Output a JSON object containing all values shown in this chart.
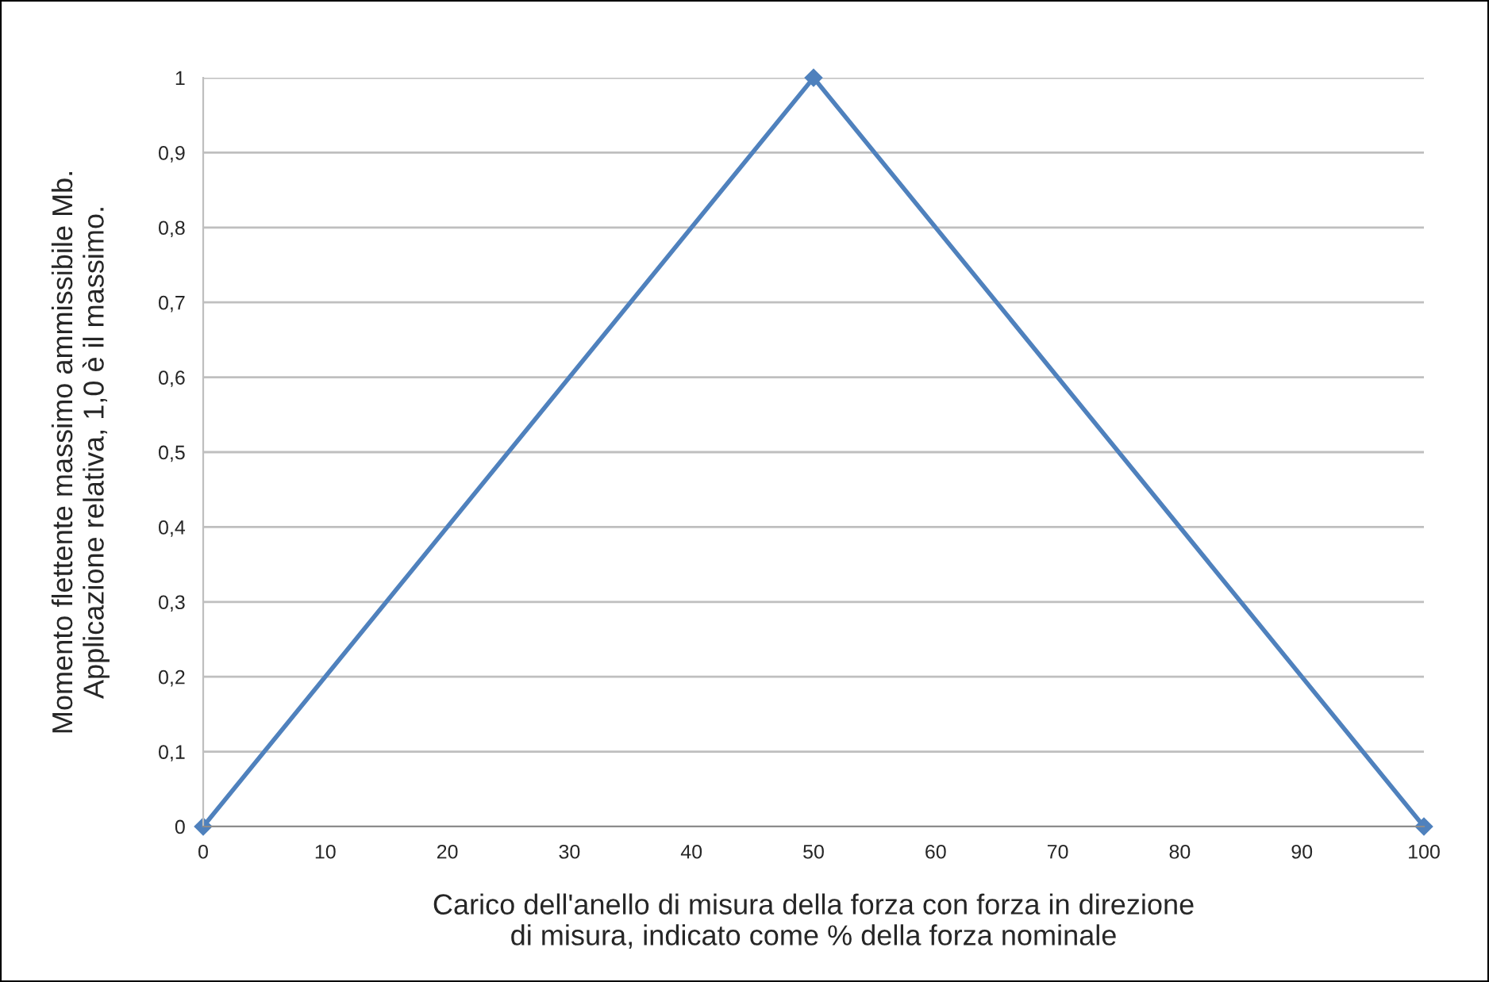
{
  "chart_data": {
    "type": "line",
    "xlabel": "Carico dell'anello di misura della forza con forza in direzione\ndi misura, indicato come % della forza nominale",
    "ylabel": "Momento flettente massimo ammissibile Mb.\nApplicazione relativa, 1,0 è il massimo.",
    "x": [
      0,
      50,
      100
    ],
    "series": [
      {
        "color": "#4f81bd",
        "values": [
          0,
          1,
          0
        ]
      }
    ],
    "xlim": [
      0,
      100
    ],
    "xticks": [
      0,
      10,
      20,
      30,
      40,
      50,
      60,
      70,
      80,
      90,
      100
    ],
    "ylim": [
      0,
      1
    ],
    "yticks": [
      0,
      {
        "value": 0.1,
        "label": "0,1"
      },
      {
        "value": 0.2,
        "label": "0,2"
      },
      {
        "value": 0.3,
        "label": "0,3"
      },
      {
        "value": 0.4,
        "label": "0,4"
      },
      {
        "value": 0.5,
        "label": "0,5"
      },
      {
        "value": 0.6,
        "label": "0,6"
      },
      {
        "value": 0.7,
        "label": "0,7"
      },
      {
        "value": 0.8,
        "label": "0,8"
      },
      {
        "value": 0.9,
        "label": "0,9"
      },
      1
    ],
    "grid": "y",
    "marker": "diamond",
    "line_style": "solid"
  }
}
